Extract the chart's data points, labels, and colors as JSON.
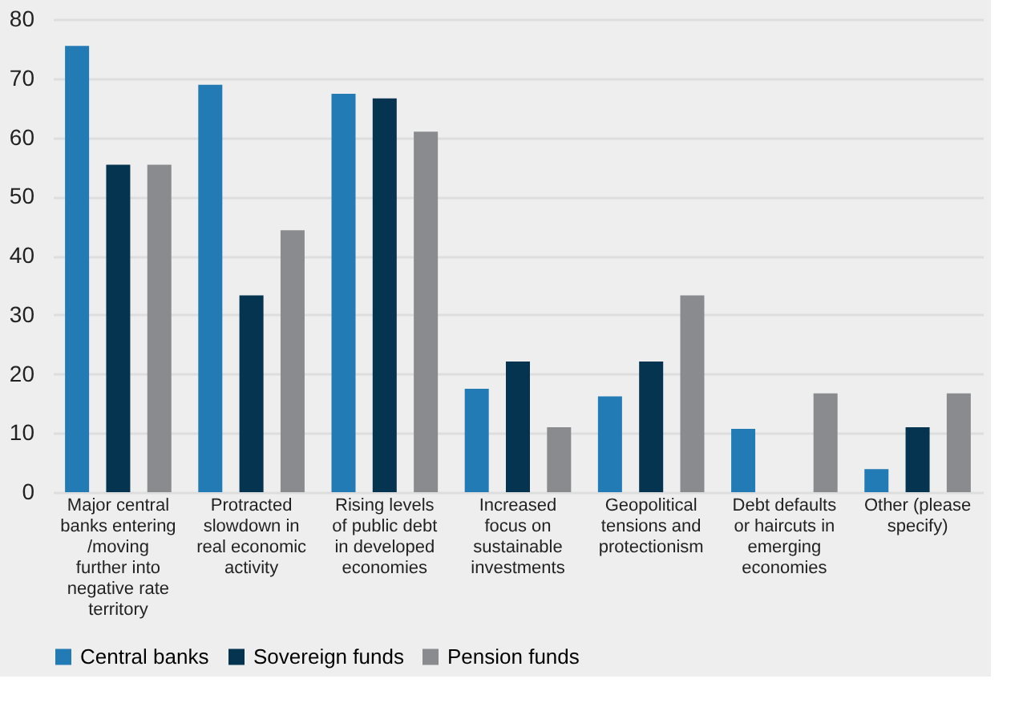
{
  "chart_data": {
    "type": "bar",
    "categories": [
      "Major central banks entering/moving further into negative rate territory",
      "Protracted slowdown in real economic activity",
      "Rising levels of public debt in developed economies",
      "Increased focus on sustainable investments",
      "Geopolitical tensions and protectionism",
      "Debt defaults or haircuts in emerging economies",
      "Other (please specify)"
    ],
    "series": [
      {
        "name": "Central banks",
        "color": "#237bb5",
        "values": [
          75.5,
          68.9,
          67.4,
          17.5,
          16.2,
          10.7,
          3.9
        ]
      },
      {
        "name": "Sovereign funds",
        "color": "#04344f",
        "values": [
          55.4,
          33.3,
          66.6,
          22.1,
          22.1,
          0,
          11.0
        ]
      },
      {
        "name": "Pension funds",
        "color": "#898b8f",
        "values": [
          55.4,
          44.3,
          61.0,
          11.0,
          33.3,
          16.7,
          16.7
        ]
      }
    ],
    "ylim": [
      0,
      80
    ],
    "yticks": [
      0,
      10,
      20,
      30,
      40,
      50,
      60,
      70,
      80
    ],
    "grid": "y",
    "legend": "bottom"
  }
}
